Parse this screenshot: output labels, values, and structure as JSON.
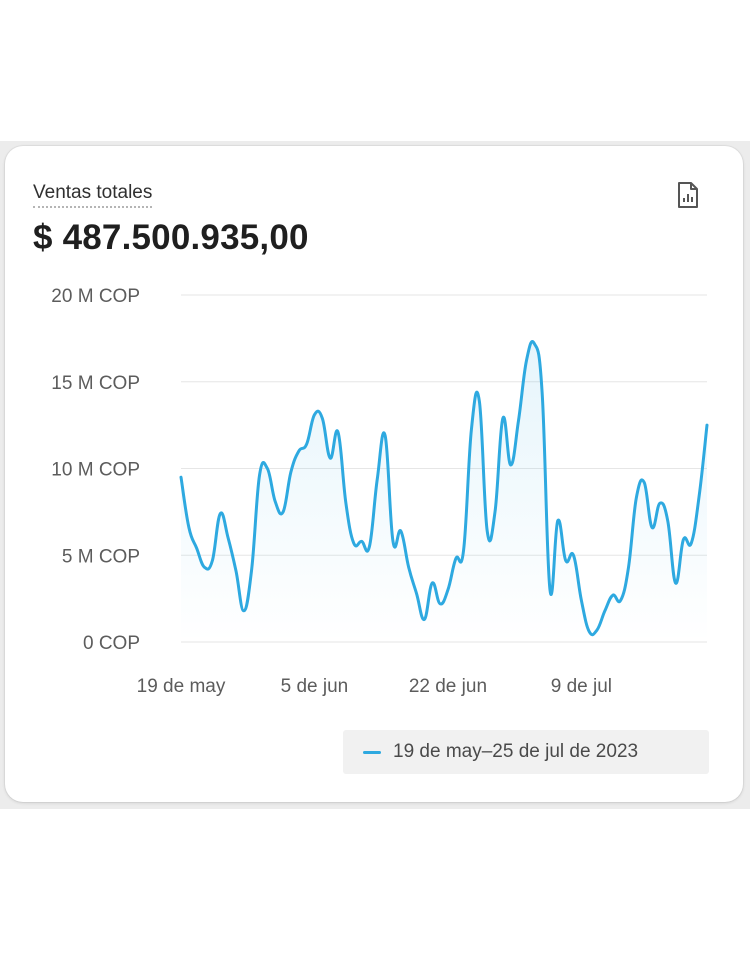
{
  "card": {
    "title": "Ventas totales",
    "total": "$ 487.500.935,00",
    "report_icon": "report-file-icon"
  },
  "legend": {
    "label": "19 de may–25 de jul de 2023"
  },
  "colors": {
    "line": "#2ea9e0",
    "grid": "#e6e6e6"
  },
  "chart_data": {
    "type": "line",
    "title": "Ventas totales",
    "ylim": [
      0,
      20000000
    ],
    "y_ticks": [
      {
        "value": 0,
        "label": "0 COP"
      },
      {
        "value": 5000000,
        "label": "5 M COP"
      },
      {
        "value": 10000000,
        "label": "10 M COP"
      },
      {
        "value": 15000000,
        "label": "15 M COP"
      },
      {
        "value": 20000000,
        "label": "20 M COP"
      }
    ],
    "x_ticks": [
      {
        "index": 0,
        "label": "19 de may"
      },
      {
        "index": 17,
        "label": "5 de jun"
      },
      {
        "index": 34,
        "label": "22 de jun"
      },
      {
        "index": 51,
        "label": "9 de jul"
      }
    ],
    "grid": true,
    "series": [
      {
        "name": "19 de may–25 de jul de 2023",
        "x": [
          "2023-05-19",
          "2023-05-20",
          "2023-05-21",
          "2023-05-22",
          "2023-05-23",
          "2023-05-24",
          "2023-05-25",
          "2023-05-26",
          "2023-05-27",
          "2023-05-28",
          "2023-05-29",
          "2023-05-30",
          "2023-05-31",
          "2023-06-01",
          "2023-06-02",
          "2023-06-03",
          "2023-06-04",
          "2023-06-05",
          "2023-06-06",
          "2023-06-07",
          "2023-06-08",
          "2023-06-09",
          "2023-06-10",
          "2023-06-11",
          "2023-06-12",
          "2023-06-13",
          "2023-06-14",
          "2023-06-15",
          "2023-06-16",
          "2023-06-17",
          "2023-06-18",
          "2023-06-19",
          "2023-06-20",
          "2023-06-21",
          "2023-06-22",
          "2023-06-23",
          "2023-06-24",
          "2023-06-25",
          "2023-06-26",
          "2023-06-27",
          "2023-06-28",
          "2023-06-29",
          "2023-06-30",
          "2023-07-01",
          "2023-07-02",
          "2023-07-03",
          "2023-07-04",
          "2023-07-05",
          "2023-07-06",
          "2023-07-07",
          "2023-07-08",
          "2023-07-09",
          "2023-07-10",
          "2023-07-11",
          "2023-07-12",
          "2023-07-13",
          "2023-07-14",
          "2023-07-15",
          "2023-07-16",
          "2023-07-17",
          "2023-07-18",
          "2023-07-19",
          "2023-07-20",
          "2023-07-21",
          "2023-07-22",
          "2023-07-23",
          "2023-07-24",
          "2023-07-25"
        ],
        "values": [
          9500000,
          6600000,
          5400000,
          4300000,
          4700000,
          7400000,
          6000000,
          4100000,
          1800000,
          4200000,
          9600000,
          10000000,
          8100000,
          7500000,
          9800000,
          11000000,
          11400000,
          13100000,
          12900000,
          10600000,
          12100000,
          8000000,
          5700000,
          5800000,
          5500000,
          9400000,
          11900000,
          5800000,
          6400000,
          4300000,
          2800000,
          1300000,
          3400000,
          2200000,
          3000000,
          4800000,
          5300000,
          12300000,
          13900000,
          6400000,
          7500000,
          12900000,
          10200000,
          12800000,
          16200000,
          17200000,
          14400000,
          3000000,
          7000000,
          4700000,
          5000000,
          2400000,
          600000,
          700000,
          1800000,
          2700000,
          2400000,
          4300000,
          8300000,
          9200000,
          6600000,
          8000000,
          7000000,
          3400000,
          5900000,
          5700000,
          8400000,
          12500000
        ]
      }
    ]
  }
}
